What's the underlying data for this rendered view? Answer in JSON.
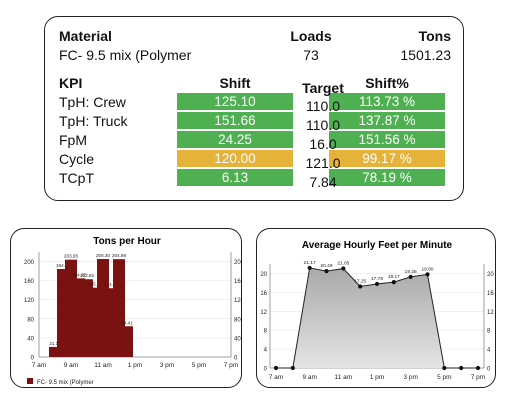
{
  "material_table": {
    "headers": {
      "material": "Material",
      "loads": "Loads",
      "tons": "Tons"
    },
    "row": {
      "material": "FC- 9.5 mix (Polymer",
      "loads": "73",
      "tons": "1501.23"
    }
  },
  "kpi_table": {
    "headers": {
      "kpi": "KPI",
      "shift": "Shift",
      "target": "Target",
      "shift_pct": "Shift%"
    },
    "rows": [
      {
        "kpi": "TpH: Crew",
        "shift": "125.10",
        "target": "110.0",
        "shift_pct": "113.73 %",
        "status": "good"
      },
      {
        "kpi": "TpH: Truck",
        "shift": "151.66",
        "target": "110.0",
        "shift_pct": "137.87 %",
        "status": "good"
      },
      {
        "kpi": "FpM",
        "shift": "24.25",
        "target": "16.0",
        "shift_pct": "151.56 %",
        "status": "good"
      },
      {
        "kpi": "Cycle",
        "shift": "120.00",
        "target": "121.0",
        "shift_pct": "99.17 %",
        "status": "warn"
      },
      {
        "kpi": "TCpT",
        "shift": "6.13",
        "target": "7.84",
        "shift_pct": "78.19 %",
        "status": "good"
      }
    ]
  },
  "colors": {
    "good": "#4fb051",
    "warn": "#e5b33a",
    "bar": "#7a1212"
  },
  "chart_data": [
    {
      "type": "bar",
      "title": "Tons per Hour",
      "x_tick_labels": [
        "7 am",
        "9 am",
        "11 am",
        "1 pm",
        "3 pm",
        "5 pm",
        "7 pm"
      ],
      "y_tick_labels": [
        "0",
        "40",
        "80",
        "120",
        "160",
        "200"
      ],
      "ylim": [
        0,
        220
      ],
      "bars": [
        {
          "x": 8.0,
          "value": 21.16,
          "label": "21.16"
        },
        {
          "x": 8.5,
          "value": 184.36,
          "label": "184.36"
        },
        {
          "x": 9.0,
          "value": 203.95,
          "label": "203.95"
        },
        {
          "x": 9.5,
          "value": 164.77,
          "label": "164.77"
        },
        {
          "x": 10.0,
          "value": 162.92,
          "label": "162.92"
        },
        {
          "x": 10.5,
          "value": 145.21,
          "label": "145.21"
        },
        {
          "x": 11.0,
          "value": 205.3,
          "label": "205.30"
        },
        {
          "x": 11.5,
          "value": 144.1,
          "label": "144.10"
        },
        {
          "x": 12.0,
          "value": 204.98,
          "label": "204.98"
        },
        {
          "x": 12.5,
          "value": 64.41,
          "label": "64.41"
        }
      ],
      "series_name": "FC- 9.5 mix (Polymer"
    },
    {
      "type": "area",
      "title": "Average Hourly Feet per Minute",
      "x_tick_labels": [
        "7 am",
        "9 am",
        "11 am",
        "1 pm",
        "3 pm",
        "5 pm",
        "7 pm"
      ],
      "y_tick_labels": [
        "0",
        "4",
        "8",
        "12",
        "16",
        "20"
      ],
      "left_axis_labels": [
        "0",
        "4",
        "8",
        "12",
        "16",
        "20"
      ],
      "right_axis_labels": [
        "0",
        "4",
        "8",
        "12",
        "16",
        "20"
      ],
      "ylim": [
        0,
        22
      ],
      "points": [
        {
          "x": 0,
          "value": 0,
          "label": ""
        },
        {
          "x": 1,
          "value": 0,
          "label": ""
        },
        {
          "x": 2,
          "value": 21.17,
          "label": "21.17"
        },
        {
          "x": 3,
          "value": 20.49,
          "label": "20.49"
        },
        {
          "x": 4,
          "value": 21.05,
          "label": "21.05"
        },
        {
          "x": 5,
          "value": 17.25,
          "label": "17.25"
        },
        {
          "x": 6,
          "value": 17.78,
          "label": "17.78"
        },
        {
          "x": 7,
          "value": 18.17,
          "label": "18.17"
        },
        {
          "x": 8,
          "value": 19.28,
          "label": "19.28"
        },
        {
          "x": 9,
          "value": 19.8,
          "label": "19.80"
        },
        {
          "x": 10,
          "value": 0,
          "label": ""
        },
        {
          "x": 11,
          "value": 0,
          "label": ""
        },
        {
          "x": 12,
          "value": 0,
          "label": ""
        }
      ]
    }
  ]
}
